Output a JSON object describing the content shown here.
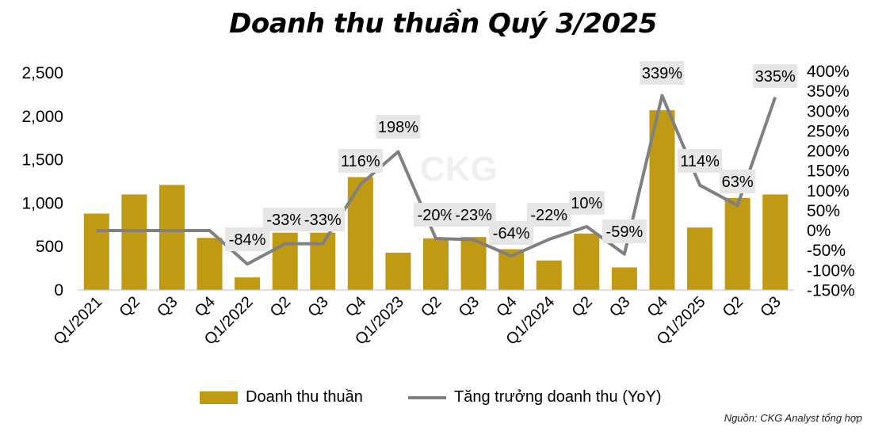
{
  "title": "Doanh thu thuần Quý 3/2025",
  "source": "Nguồn: CKG Analyst tổng hợp",
  "watermark": "CKG",
  "colors": {
    "bar": "#C09A13",
    "line": "#808080",
    "label_bg": "#E6E6E6"
  },
  "legend": {
    "bar_label": "Doanh thu thuần",
    "line_label": "Tăng trưởng doanh thu (YoY)"
  },
  "chart_data": {
    "type": "bar",
    "categories": [
      "Q1/2021",
      "Q2",
      "Q3",
      "Q4",
      "Q1/2022",
      "Q2",
      "Q3",
      "Q4",
      "Q1/2023",
      "Q2",
      "Q3",
      "Q4",
      "Q1/2024",
      "Q2",
      "Q3",
      "Q4",
      "Q1/2025",
      "Q2",
      "Q3"
    ],
    "series": [
      {
        "name": "Doanh thu thuần",
        "axis": "left",
        "type": "bar",
        "values": [
          880,
          1100,
          1210,
          600,
          145,
          660,
          660,
          1300,
          430,
          595,
          610,
          470,
          340,
          650,
          260,
          2070,
          720,
          1060,
          1100
        ]
      },
      {
        "name": "Tăng trưởng doanh thu (YoY)",
        "axis": "right",
        "type": "line",
        "values": [
          0,
          0,
          0,
          0,
          -84,
          -33,
          -33,
          116,
          198,
          -20,
          -23,
          -64,
          -22,
          10,
          -59,
          339,
          114,
          63,
          335
        ],
        "labels": [
          "",
          "",
          "",
          "",
          "-84%",
          "-33%",
          "-33%",
          "116%",
          "198%",
          "-20%",
          "-23%",
          "-64%",
          "-22%",
          "10%",
          "-59%",
          "339%",
          "114%",
          "63%",
          "335%"
        ]
      }
    ],
    "y_left": {
      "min": 0,
      "max": 2500,
      "ticks": [
        "2,500",
        "2,000",
        "1,500",
        "1,000",
        "500",
        "0"
      ]
    },
    "y_right": {
      "min": -150,
      "max": 400,
      "ticks": [
        "400%",
        "350%",
        "300%",
        "250%",
        "200%",
        "150%",
        "100%",
        "50%",
        "0%",
        "-50%",
        "-100%",
        "-150%"
      ]
    },
    "grid": false,
    "legend_position": "bottom"
  }
}
